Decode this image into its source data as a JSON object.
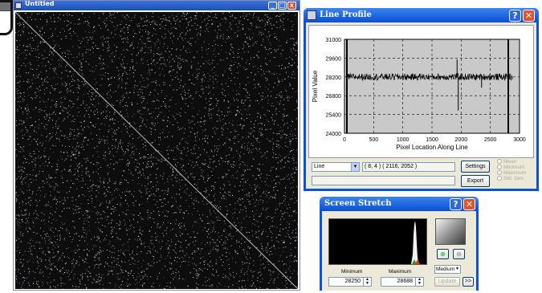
{
  "image_window": {
    "title": "Untitled"
  },
  "line_profile": {
    "title": "Line Profile",
    "help_label": "?",
    "close_label": "✕",
    "chart": {
      "ylabel": "Pixel Value",
      "xlabel": "Pixel Location Along Line",
      "y_ticks": [
        "31000",
        "29600",
        "28200",
        "26800",
        "25400",
        "24000"
      ],
      "x_ticks": [
        "0",
        "500",
        "1000",
        "1500",
        "2000",
        "2500",
        "3000"
      ]
    },
    "mode_select": "Line",
    "coords": "( 8, 4 ) ( 2116, 2052 )",
    "settings_label": "Settings",
    "export_label": "Export",
    "radios": [
      "Mean",
      "Minimum",
      "Maximum",
      "Std. Dev."
    ]
  },
  "chart_data": {
    "type": "line",
    "xlabel": "Pixel Location Along Line",
    "ylabel": "Pixel Value",
    "xlim": [
      0,
      3000
    ],
    "ylim": [
      24000,
      31000
    ],
    "grid": true,
    "baseline": 28200,
    "noise_band": [
      27950,
      28450
    ],
    "spikes": [
      {
        "x": 1930,
        "y": 29500
      },
      {
        "x": 1950,
        "y": 25700
      },
      {
        "x": 2350,
        "y": 27400
      }
    ]
  },
  "screen_stretch": {
    "title": "Screen Stretch",
    "help_label": "?",
    "close_label": "✕",
    "minimum_label": "Minimum",
    "maximum_label": "Maximum",
    "minimum_value": "28250",
    "maximum_value": "28688",
    "speed_select": "Medium",
    "update_label": "Update",
    "more_label": ">>"
  }
}
